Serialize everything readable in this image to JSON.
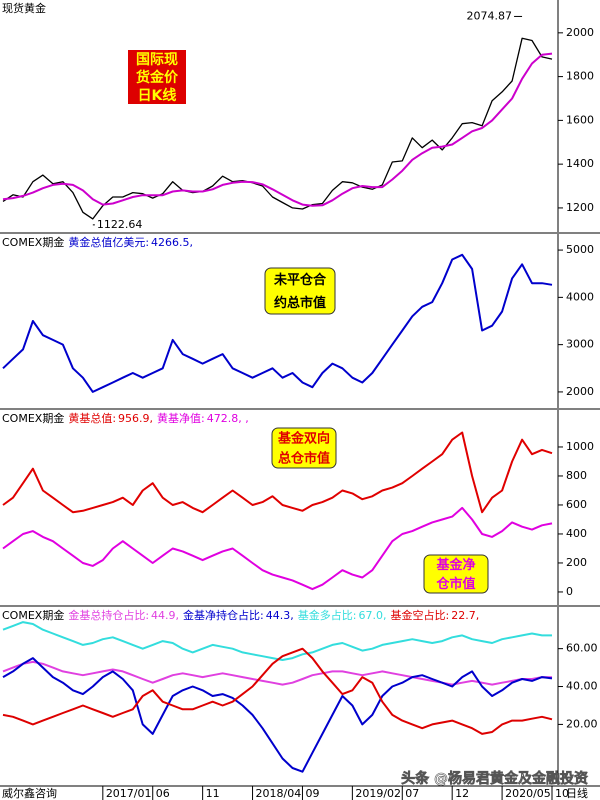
{
  "chart_data": [
    {
      "type": "line",
      "title": "现货黄金",
      "series": [
        {
          "color": "#000000",
          "values": [
            1230,
            1260,
            1250,
            1320,
            1350,
            1310,
            1320,
            1270,
            1180,
            1150,
            1210,
            1250,
            1250,
            1270,
            1265,
            1245,
            1265,
            1320,
            1280,
            1270,
            1275,
            1300,
            1345,
            1320,
            1325,
            1315,
            1300,
            1250,
            1225,
            1200,
            1195,
            1215,
            1220,
            1280,
            1320,
            1315,
            1295,
            1285,
            1305,
            1410,
            1415,
            1520,
            1475,
            1510,
            1465,
            1520,
            1585,
            1590,
            1575,
            1690,
            1730,
            1780,
            1975,
            1965,
            1890,
            1880
          ]
        },
        {
          "color": "#cc00cc",
          "values": [
            1240,
            1245,
            1255,
            1270,
            1290,
            1305,
            1310,
            1305,
            1280,
            1240,
            1215,
            1220,
            1235,
            1250,
            1258,
            1258,
            1258,
            1275,
            1280,
            1275,
            1275,
            1285,
            1305,
            1315,
            1320,
            1318,
            1308,
            1285,
            1260,
            1235,
            1215,
            1210,
            1212,
            1235,
            1265,
            1290,
            1300,
            1295,
            1295,
            1330,
            1370,
            1420,
            1450,
            1475,
            1480,
            1490,
            1520,
            1550,
            1565,
            1600,
            1650,
            1700,
            1790,
            1860,
            1900,
            1905
          ]
        }
      ],
      "annotations": [
        {
          "value": 2074.87,
          "label": "2074.87"
        },
        {
          "value": 1122.64,
          "label": "1122.64"
        }
      ],
      "notes": [
        {
          "lines": [
            "国际现",
            "货金价",
            "日K线"
          ],
          "color": "#ffff00",
          "background": "#dd0000"
        }
      ],
      "ylim": [
        1090,
        2150
      ],
      "yticks": [
        1200,
        1400,
        1600,
        1800,
        2000
      ]
    },
    {
      "type": "line",
      "prefix": "COMEX期金",
      "series": [
        {
          "name": "黄金总值亿美元:",
          "color": "#0000cc",
          "values": [
            2500,
            2700,
            2900,
            3500,
            3200,
            3100,
            3000,
            2500,
            2300,
            2000,
            2100,
            2200,
            2300,
            2400,
            2300,
            2400,
            2500,
            3100,
            2800,
            2700,
            2600,
            2700,
            2800,
            2500,
            2400,
            2300,
            2400,
            2500,
            2300,
            2400,
            2200,
            2100,
            2400,
            2600,
            2500,
            2300,
            2200,
            2400,
            2700,
            3000,
            3300,
            3600,
            3800,
            3900,
            4300,
            4800,
            4900,
            4600,
            3300,
            3400,
            3700,
            4400,
            4700,
            4300,
            4300,
            4266.5
          ],
          "value_labels": [
            null,
            null,
            null,
            null,
            null,
            null,
            null,
            null,
            null,
            null,
            null,
            null,
            null,
            null,
            null,
            null,
            null,
            null,
            null,
            null,
            null,
            null,
            null,
            null,
            null,
            null,
            null,
            null,
            null,
            null,
            null,
            null,
            null,
            null,
            null,
            null,
            null,
            null,
            null,
            null,
            null,
            null,
            null,
            null,
            null,
            null,
            null,
            null,
            null,
            null,
            null,
            null,
            null,
            null,
            null,
            "4266.5,"
          ]
        }
      ],
      "notes": [
        {
          "lines": [
            "未平仓合",
            "约总市值"
          ],
          "color": "#000000",
          "background": "#ffff00"
        }
      ],
      "ylim": [
        1660,
        5340
      ],
      "yticks": [
        2000,
        3000,
        4000,
        5000
      ]
    },
    {
      "type": "line",
      "prefix": "COMEX期金",
      "series": [
        {
          "name": "黄基总值:",
          "color": "#e00000",
          "values": [
            600,
            650,
            750,
            850,
            700,
            650,
            600,
            550,
            560,
            580,
            600,
            620,
            650,
            600,
            700,
            750,
            650,
            600,
            620,
            580,
            550,
            600,
            650,
            700,
            650,
            600,
            620,
            660,
            600,
            580,
            560,
            600,
            620,
            650,
            700,
            680,
            640,
            660,
            700,
            720,
            750,
            800,
            850,
            900,
            950,
            1050,
            1100,
            800,
            550,
            650,
            700,
            900,
            1050,
            950,
            980,
            956.9
          ],
          "value_labels": [
            null,
            null,
            null,
            null,
            null,
            null,
            null,
            null,
            null,
            null,
            null,
            null,
            null,
            null,
            null,
            null,
            null,
            null,
            null,
            null,
            null,
            null,
            null,
            null,
            null,
            null,
            null,
            null,
            null,
            null,
            null,
            null,
            null,
            null,
            null,
            null,
            null,
            null,
            null,
            null,
            null,
            null,
            null,
            null,
            null,
            null,
            null,
            null,
            null,
            null,
            null,
            null,
            null,
            null,
            null,
            "956.9,"
          ]
        },
        {
          "name": "黄基净值:",
          "color": "#e000e0",
          "values": [
            300,
            350,
            400,
            420,
            380,
            350,
            300,
            250,
            200,
            180,
            220,
            300,
            350,
            300,
            250,
            200,
            250,
            300,
            280,
            250,
            220,
            250,
            280,
            300,
            250,
            200,
            150,
            120,
            100,
            80,
            50,
            20,
            50,
            100,
            150,
            120,
            100,
            150,
            250,
            350,
            400,
            420,
            450,
            480,
            500,
            520,
            580,
            500,
            400,
            380,
            420,
            480,
            450,
            430,
            460,
            472.8
          ],
          "value_labels": [
            null,
            null,
            null,
            null,
            null,
            null,
            null,
            null,
            null,
            null,
            null,
            null,
            null,
            null,
            null,
            null,
            null,
            null,
            null,
            null,
            null,
            null,
            null,
            null,
            null,
            null,
            null,
            null,
            null,
            null,
            null,
            null,
            null,
            null,
            null,
            null,
            null,
            null,
            null,
            null,
            null,
            null,
            null,
            null,
            null,
            null,
            null,
            null,
            null,
            null,
            null,
            null,
            null,
            null,
            null,
            "472.8, ,"
          ]
        }
      ],
      "notes": [
        {
          "lines": [
            "基金双向",
            "总仓市值"
          ],
          "color": "#e00000",
          "background": "#ffff00"
        },
        {
          "lines": [
            "基金净",
            "仓市值"
          ],
          "color": "#e000e0",
          "background": "#ffff00"
        }
      ],
      "ylim": [
        -90,
        1255
      ],
      "yticks": [
        0,
        200,
        400,
        600,
        800,
        1000
      ]
    },
    {
      "type": "line",
      "prefix": "COMEX期金",
      "series": [
        {
          "name": "金基总持仓占比:",
          "color": "#e040e0",
          "values": [
            48,
            50,
            52,
            53,
            52,
            50,
            48,
            47,
            46,
            47,
            48,
            49,
            48,
            46,
            44,
            42,
            44,
            46,
            47,
            46,
            45,
            46,
            47,
            46,
            45,
            44,
            43,
            42,
            41,
            42,
            44,
            46,
            47,
            48,
            48,
            47,
            46,
            47,
            48,
            47,
            46,
            45,
            44,
            43,
            42,
            41,
            42,
            43,
            42,
            41,
            42,
            43,
            44,
            44,
            45,
            44.9
          ],
          "value_labels": [
            null,
            null,
            null,
            null,
            null,
            null,
            null,
            null,
            null,
            null,
            null,
            null,
            null,
            null,
            null,
            null,
            null,
            null,
            null,
            null,
            null,
            null,
            null,
            null,
            null,
            null,
            null,
            null,
            null,
            null,
            null,
            null,
            null,
            null,
            null,
            null,
            null,
            null,
            null,
            null,
            null,
            null,
            null,
            null,
            null,
            null,
            null,
            null,
            null,
            null,
            null,
            null,
            null,
            null,
            null,
            "44.9,"
          ]
        },
        {
          "name": "金基净持仓占比:",
          "color": "#0000cc",
          "values": [
            45,
            48,
            52,
            55,
            50,
            45,
            42,
            38,
            36,
            40,
            45,
            48,
            44,
            38,
            20,
            15,
            25,
            35,
            38,
            40,
            38,
            35,
            36,
            34,
            30,
            25,
            18,
            10,
            2,
            -3,
            -5,
            5,
            15,
            25,
            35,
            30,
            20,
            25,
            35,
            40,
            42,
            45,
            46,
            44,
            42,
            40,
            45,
            48,
            40,
            35,
            38,
            42,
            44,
            43,
            45,
            44.3
          ],
          "value_labels": [
            null,
            null,
            null,
            null,
            null,
            null,
            null,
            null,
            null,
            null,
            null,
            null,
            null,
            null,
            null,
            null,
            null,
            null,
            null,
            null,
            null,
            null,
            null,
            null,
            null,
            null,
            null,
            null,
            null,
            null,
            null,
            null,
            null,
            null,
            null,
            null,
            null,
            null,
            null,
            null,
            null,
            null,
            null,
            null,
            null,
            null,
            null,
            null,
            null,
            null,
            null,
            null,
            null,
            null,
            null,
            "44.3,"
          ]
        },
        {
          "name": "基金多占比:",
          "color": "#33dddd",
          "values": [
            70,
            72,
            74,
            73,
            70,
            68,
            66,
            64,
            62,
            63,
            65,
            66,
            64,
            62,
            60,
            62,
            64,
            63,
            60,
            58,
            60,
            62,
            61,
            60,
            58,
            57,
            56,
            55,
            54,
            55,
            57,
            58,
            60,
            62,
            63,
            61,
            59,
            60,
            62,
            63,
            64,
            65,
            64,
            63,
            64,
            66,
            67,
            65,
            64,
            63,
            65,
            66,
            67,
            68,
            67,
            67
          ],
          "value_labels": [
            null,
            null,
            null,
            null,
            null,
            null,
            null,
            null,
            null,
            null,
            null,
            null,
            null,
            null,
            null,
            null,
            null,
            null,
            null,
            null,
            null,
            null,
            null,
            null,
            null,
            null,
            null,
            null,
            null,
            null,
            null,
            null,
            null,
            null,
            null,
            null,
            null,
            null,
            null,
            null,
            null,
            null,
            null,
            null,
            null,
            null,
            null,
            null,
            null,
            null,
            null,
            null,
            null,
            null,
            null,
            "67.0,"
          ]
        },
        {
          "name": "基金空占比:",
          "color": "#dd0000",
          "values": [
            25,
            24,
            22,
            20,
            22,
            24,
            26,
            28,
            30,
            28,
            26,
            24,
            26,
            28,
            35,
            38,
            32,
            30,
            28,
            28,
            30,
            32,
            30,
            32,
            36,
            40,
            46,
            52,
            56,
            58,
            60,
            55,
            48,
            42,
            36,
            38,
            45,
            42,
            32,
            25,
            22,
            20,
            18,
            20,
            21,
            22,
            20,
            18,
            15,
            16,
            20,
            22,
            22,
            23,
            24,
            22.7
          ],
          "value_labels": [
            null,
            null,
            null,
            null,
            null,
            null,
            null,
            null,
            null,
            null,
            null,
            null,
            null,
            null,
            null,
            null,
            null,
            null,
            null,
            null,
            null,
            null,
            null,
            null,
            null,
            null,
            null,
            null,
            null,
            null,
            null,
            null,
            null,
            null,
            null,
            null,
            null,
            null,
            null,
            null,
            null,
            null,
            null,
            null,
            null,
            null,
            null,
            null,
            null,
            null,
            null,
            null,
            null,
            null,
            null,
            "22.7,"
          ]
        }
      ],
      "categories": [
        null,
        null,
        null,
        null,
        null,
        null,
        null,
        null,
        null,
        null,
        "2017/01",
        null,
        null,
        null,
        null,
        "06",
        null,
        null,
        null,
        null,
        "11",
        null,
        null,
        null,
        null,
        "2018/04",
        null,
        null,
        null,
        null,
        "09",
        null,
        null,
        null,
        null,
        "2019/02",
        null,
        null,
        null,
        null,
        "07",
        null,
        null,
        null,
        null,
        "12",
        null,
        null,
        null,
        null,
        "2020/05",
        null,
        null,
        null,
        null,
        "10"
      ],
      "x_left_label": "威尔鑫咨询",
      "x_right_label": "日线",
      "ylim": [
        -12,
        82
      ],
      "yticks": [
        {
          "value": 20,
          "label": "20.00"
        },
        {
          "value": 40,
          "label": "40.00"
        },
        {
          "value": 60,
          "label": "60.00"
        }
      ]
    }
  ],
  "watermark": "头条 @杨易君黄金及金融投资"
}
